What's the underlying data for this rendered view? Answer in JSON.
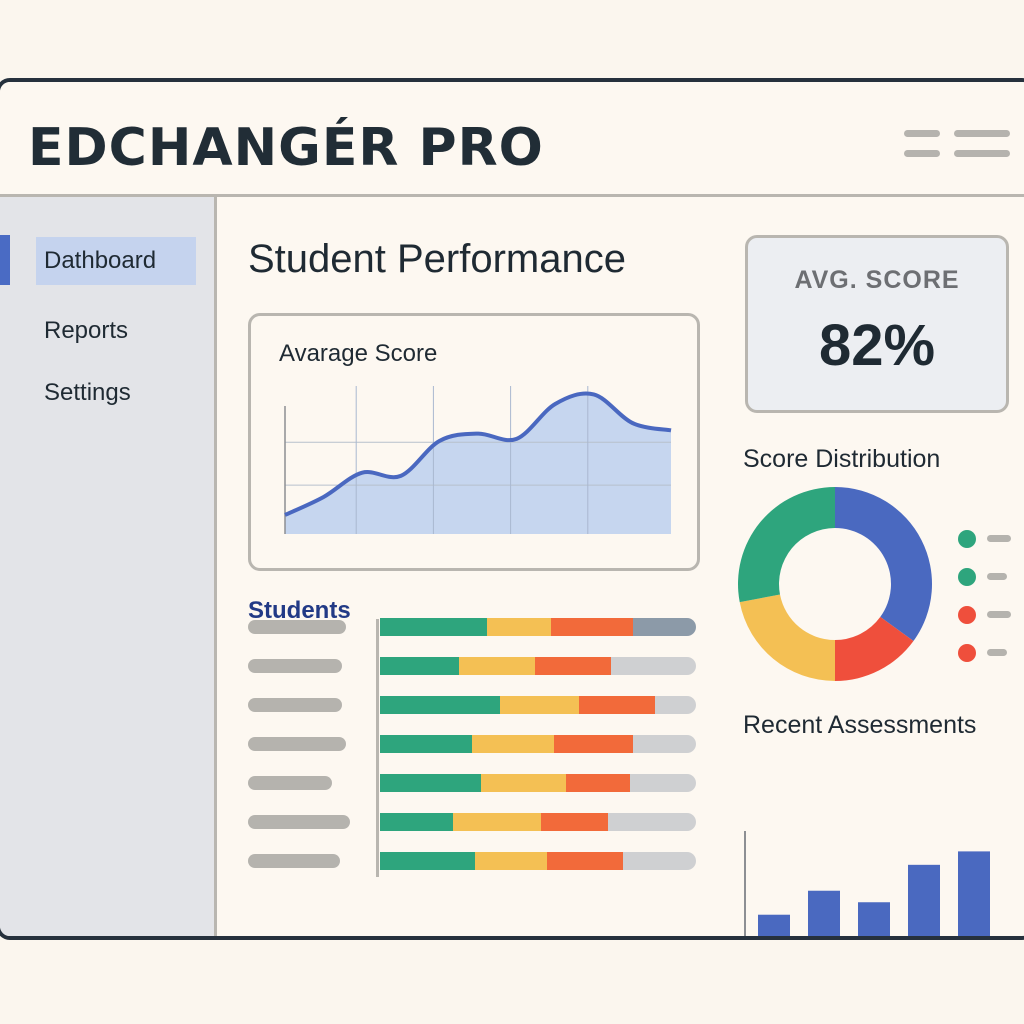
{
  "app": {
    "title": "EDCHANGÉR PRO"
  },
  "sidebar": {
    "items": [
      {
        "label": "Dathboard",
        "active": true
      },
      {
        "label": "Reports",
        "active": false
      },
      {
        "label": "Settings",
        "active": false
      }
    ]
  },
  "main": {
    "page_title": "Student Performance",
    "kpi": {
      "label": "AVG. SCORE",
      "value": "82%"
    },
    "line_chart_title": "Avarage Score",
    "students_title": "Students",
    "distribution_title": "Score Distribution",
    "recent_title": "Recent Assessments"
  },
  "colors": {
    "green": "#2ea57d",
    "yellow": "#f4c054",
    "orange": "#f26a3a",
    "red": "#ef4f3c",
    "blue": "#4a69c0",
    "slate": "#8c9aa8",
    "gray": "#cfd0d2",
    "line": "#4a68c0",
    "area": "#c6d6ef"
  },
  "chart_data": [
    {
      "type": "area",
      "title": "Avarage Score",
      "x": [
        0,
        1,
        2,
        3,
        4,
        5,
        6,
        7,
        8,
        9,
        10
      ],
      "values": [
        18,
        35,
        58,
        55,
        88,
        95,
        90,
        123,
        132,
        105,
        98
      ],
      "ylim": [
        0,
        140
      ]
    },
    {
      "type": "pie",
      "title": "Score Distribution",
      "values": [
        35,
        15,
        22,
        28
      ],
      "slice_colors": [
        "blue",
        "red",
        "yellow",
        "green"
      ],
      "legend_colors": [
        "green",
        "green",
        "red",
        "red"
      ],
      "legend_placement": "right"
    },
    {
      "type": "bar",
      "title": "Recent Assessments",
      "values": [
        67,
        92,
        80,
        119,
        133
      ],
      "ylim": [
        0,
        148
      ]
    },
    {
      "type": "bar",
      "title": "Students",
      "stacked": true,
      "rows": [
        {
          "segments": [
            {
              "v": 34,
              "c": "green"
            },
            {
              "v": 20,
              "c": "yellow"
            },
            {
              "v": 26,
              "c": "orange"
            },
            {
              "v": 20,
              "c": "slate"
            }
          ]
        },
        {
          "segments": [
            {
              "v": 25,
              "c": "green"
            },
            {
              "v": 24,
              "c": "yellow"
            },
            {
              "v": 24,
              "c": "orange"
            },
            {
              "v": 27,
              "c": "gray"
            }
          ]
        },
        {
          "segments": [
            {
              "v": 38,
              "c": "green"
            },
            {
              "v": 25,
              "c": "yellow"
            },
            {
              "v": 24,
              "c": "orange"
            },
            {
              "v": 13,
              "c": "gray"
            }
          ]
        },
        {
          "segments": [
            {
              "v": 29,
              "c": "green"
            },
            {
              "v": 26,
              "c": "yellow"
            },
            {
              "v": 25,
              "c": "orange"
            },
            {
              "v": 20,
              "c": "gray"
            }
          ]
        },
        {
          "segments": [
            {
              "v": 32,
              "c": "green"
            },
            {
              "v": 27,
              "c": "yellow"
            },
            {
              "v": 20,
              "c": "orange"
            },
            {
              "v": 21,
              "c": "gray"
            }
          ]
        },
        {
          "segments": [
            {
              "v": 23,
              "c": "green"
            },
            {
              "v": 28,
              "c": "yellow"
            },
            {
              "v": 21,
              "c": "orange"
            },
            {
              "v": 28,
              "c": "gray"
            }
          ]
        },
        {
          "segments": [
            {
              "v": 30,
              "c": "green"
            },
            {
              "v": 23,
              "c": "yellow"
            },
            {
              "v": 24,
              "c": "orange"
            },
            {
              "v": 23,
              "c": "gray"
            }
          ]
        }
      ]
    }
  ]
}
